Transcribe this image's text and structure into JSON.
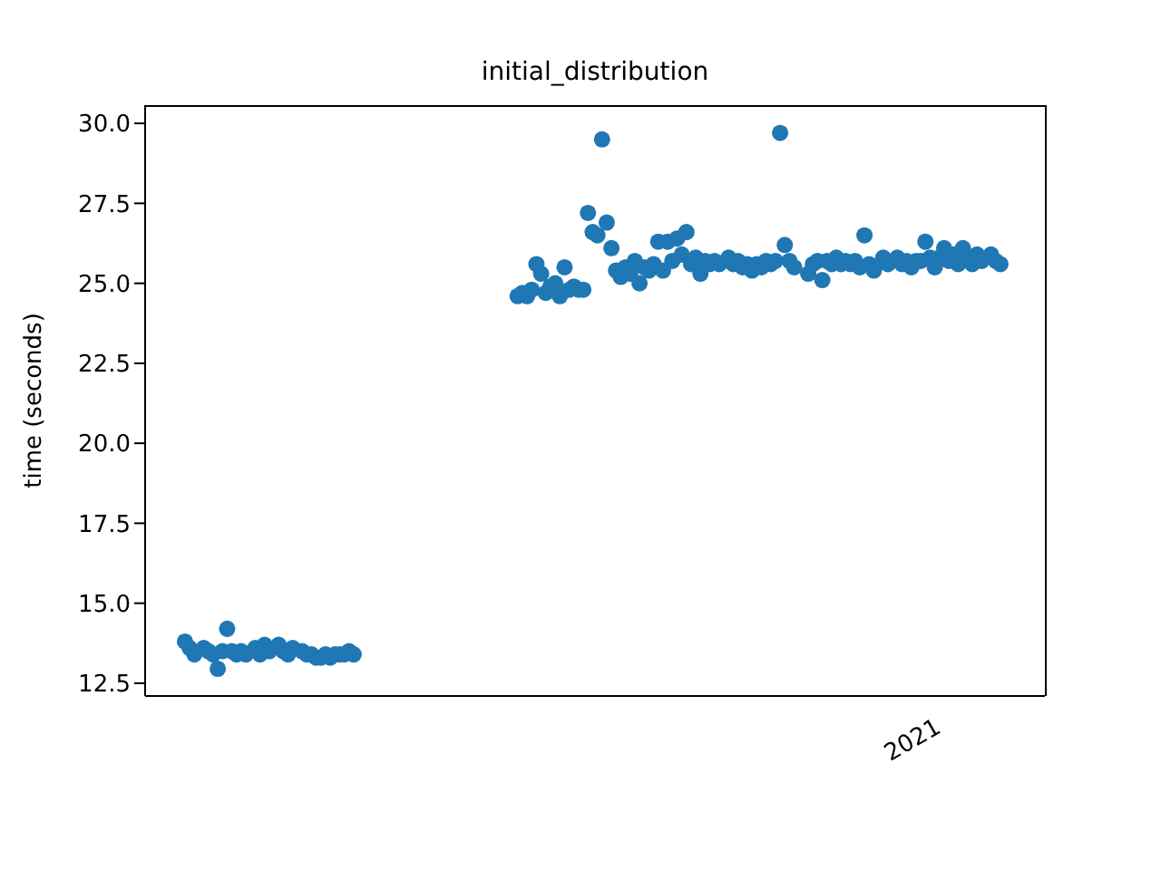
{
  "chart_data": {
    "type": "scatter",
    "title": "initial_distribution",
    "ylabel": "time (seconds)",
    "categories": [
      null,
      null,
      null,
      null,
      null,
      null,
      null,
      null,
      null,
      null,
      null,
      null,
      null,
      null,
      null,
      null,
      null,
      null,
      null,
      null,
      null,
      null,
      null,
      null,
      null,
      null,
      null,
      null,
      null,
      null,
      null,
      null,
      null,
      null,
      null,
      null,
      null,
      null,
      null,
      null,
      null,
      null,
      null,
      null,
      null,
      null,
      null,
      null,
      null,
      null,
      null,
      null,
      null,
      null,
      null,
      null,
      null,
      null,
      null,
      null,
      null,
      null,
      null,
      null,
      null,
      null,
      null,
      null,
      null,
      null,
      null,
      null,
      null,
      null,
      null,
      null,
      null,
      null,
      null,
      null,
      null,
      null,
      null,
      null,
      null,
      null,
      null,
      null,
      null,
      null,
      null,
      null,
      null,
      null,
      null,
      null,
      null,
      null,
      null,
      null,
      null,
      null,
      null,
      null,
      null,
      null,
      null,
      null,
      null,
      null,
      null,
      null,
      null,
      null,
      null,
      null,
      null,
      null,
      null,
      null,
      null,
      null,
      null,
      null,
      null,
      null,
      null,
      null,
      null,
      null,
      null,
      null,
      null,
      null,
      null,
      null,
      null,
      null,
      null,
      null,
      null,
      null,
      null,
      null,
      null,
      null,
      null,
      null,
      null,
      null,
      null,
      null,
      null,
      null,
      null,
      null,
      null,
      null,
      null,
      null,
      null,
      null,
      null,
      null,
      null,
      null,
      null,
      null,
      null,
      null,
      null,
      null,
      null,
      null,
      null,
      null,
      null,
      null,
      null,
      null,
      null,
      null,
      null,
      null,
      null,
      null,
      null,
      null,
      null,
      null,
      null,
      null
    ],
    "series": [
      {
        "color": "#1f77b4",
        "values": [
          null,
          null,
          null,
          null,
          null,
          null,
          null,
          null,
          13.8,
          13.6,
          13.4,
          null,
          13.6,
          13.5,
          13.4,
          12.95,
          13.5,
          14.2,
          13.5,
          13.4,
          13.5,
          13.4,
          null,
          13.6,
          13.4,
          13.7,
          13.5,
          null,
          13.7,
          13.5,
          13.4,
          13.6,
          null,
          13.5,
          13.4,
          13.4,
          13.3,
          13.3,
          13.4,
          13.3,
          13.4,
          13.4,
          13.4,
          13.5,
          13.4,
          null,
          null,
          null,
          null,
          null,
          null,
          null,
          null,
          null,
          null,
          null,
          null,
          null,
          null,
          null,
          null,
          null,
          null,
          null,
          null,
          null,
          null,
          null,
          null,
          null,
          null,
          null,
          null,
          null,
          null,
          null,
          null,
          null,
          null,
          24.6,
          24.7,
          24.6,
          24.8,
          25.6,
          25.3,
          24.7,
          24.9,
          25.0,
          24.6,
          25.5,
          24.8,
          24.9,
          24.8,
          24.8,
          27.2,
          26.6,
          26.5,
          29.5,
          26.9,
          26.1,
          25.4,
          25.2,
          25.5,
          25.3,
          25.7,
          25.0,
          25.5,
          25.4,
          25.6,
          26.3,
          25.4,
          26.3,
          25.7,
          26.4,
          25.9,
          26.6,
          25.6,
          25.8,
          25.3,
          25.7,
          25.6,
          25.7,
          25.6,
          null,
          25.8,
          25.6,
          25.7,
          25.5,
          25.6,
          25.4,
          25.6,
          25.5,
          25.7,
          25.6,
          25.7,
          29.7,
          26.2,
          25.7,
          25.5,
          null,
          null,
          25.3,
          25.6,
          25.7,
          25.1,
          25.7,
          25.6,
          25.8,
          25.6,
          25.7,
          25.6,
          25.7,
          25.5,
          26.5,
          25.6,
          25.4,
          null,
          25.8,
          25.6,
          null,
          25.8,
          25.6,
          25.7,
          25.5,
          25.7,
          25.7,
          26.3,
          25.8,
          25.5,
          25.8,
          26.1,
          25.7,
          25.9,
          25.6,
          26.1,
          25.8,
          25.6,
          25.9,
          25.7,
          null,
          25.9,
          25.7,
          25.6,
          null,
          null,
          null,
          null,
          null,
          null,
          null,
          null,
          null
        ]
      }
    ],
    "ylim": [
      12.1,
      30.57
    ],
    "yticks": [
      {
        "value": 12.5,
        "label": "12.5"
      },
      {
        "value": 15,
        "label": "15.0"
      },
      {
        "value": 17.5,
        "label": "17.5"
      },
      {
        "value": 20,
        "label": "20.0"
      },
      {
        "value": 22.5,
        "label": "22.5"
      },
      {
        "value": 25,
        "label": "25.0"
      },
      {
        "value": 27.5,
        "label": "27.5"
      },
      {
        "value": 30,
        "label": "30.0"
      }
    ],
    "annotations": [
      "2021"
    ],
    "marker": "circle",
    "grid": false,
    "legend": false
  }
}
